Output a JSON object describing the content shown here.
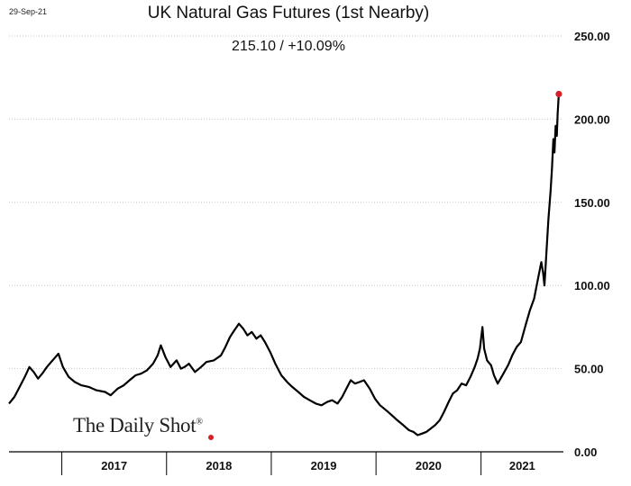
{
  "date_stamp": "29-Sep-21",
  "logo": {
    "text": "The Daily Shot",
    "mark": "®",
    "dot_color": "#d62027"
  },
  "chart_data": {
    "type": "line",
    "title": "UK Natural Gas Futures (1st Nearby)",
    "subtitle": "215.10  /  +10.09%",
    "xlabel": "",
    "ylabel": "",
    "ylim": [
      0,
      250
    ],
    "yticks": [
      0,
      50,
      100,
      150,
      200,
      250
    ],
    "ytick_labels": [
      "0.00",
      "50.00",
      "100.00",
      "150.00",
      "200.00",
      "250.00"
    ],
    "xlim": [
      "2016-07-01",
      "2021-10-15"
    ],
    "year_labels": [
      "2017",
      "2018",
      "2019",
      "2020",
      "2021"
    ],
    "grid": true,
    "line_color": "#000000",
    "last_point_color": "#d62027",
    "series": [
      {
        "points": [
          [
            "2016-07-01",
            29
          ],
          [
            "2016-07-20",
            33
          ],
          [
            "2016-08-10",
            40
          ],
          [
            "2016-08-25",
            45
          ],
          [
            "2016-09-10",
            51
          ],
          [
            "2016-09-25",
            48
          ],
          [
            "2016-10-10",
            44
          ],
          [
            "2016-10-25",
            47
          ],
          [
            "2016-11-10",
            51
          ],
          [
            "2016-11-25",
            54
          ],
          [
            "2016-12-10",
            57
          ],
          [
            "2016-12-20",
            59
          ],
          [
            "2017-01-05",
            51
          ],
          [
            "2017-01-25",
            45
          ],
          [
            "2017-02-15",
            42
          ],
          [
            "2017-03-10",
            40
          ],
          [
            "2017-04-05",
            39
          ],
          [
            "2017-05-01",
            37
          ],
          [
            "2017-06-01",
            36
          ],
          [
            "2017-06-20",
            34
          ],
          [
            "2017-07-15",
            38
          ],
          [
            "2017-08-05",
            40
          ],
          [
            "2017-08-25",
            43
          ],
          [
            "2017-09-15",
            46
          ],
          [
            "2017-10-05",
            47
          ],
          [
            "2017-10-25",
            49
          ],
          [
            "2017-11-15",
            53
          ],
          [
            "2017-12-01",
            58
          ],
          [
            "2017-12-12",
            64
          ],
          [
            "2017-12-28",
            57
          ],
          [
            "2018-01-15",
            51
          ],
          [
            "2018-02-05",
            55
          ],
          [
            "2018-02-20",
            50
          ],
          [
            "2018-03-05",
            51
          ],
          [
            "2018-03-20",
            53
          ],
          [
            "2018-04-10",
            48
          ],
          [
            "2018-05-01",
            51
          ],
          [
            "2018-05-20",
            54
          ],
          [
            "2018-06-15",
            55
          ],
          [
            "2018-07-10",
            58
          ],
          [
            "2018-07-25",
            63
          ],
          [
            "2018-08-10",
            69
          ],
          [
            "2018-08-25",
            73
          ],
          [
            "2018-09-10",
            77
          ],
          [
            "2018-09-25",
            74
          ],
          [
            "2018-10-10",
            70
          ],
          [
            "2018-10-25",
            72
          ],
          [
            "2018-11-10",
            68
          ],
          [
            "2018-11-25",
            70
          ],
          [
            "2018-12-10",
            66
          ],
          [
            "2018-12-28",
            60
          ],
          [
            "2019-01-15",
            53
          ],
          [
            "2019-02-05",
            46
          ],
          [
            "2019-02-25",
            42
          ],
          [
            "2019-03-15",
            39
          ],
          [
            "2019-04-05",
            36
          ],
          [
            "2019-04-25",
            33
          ],
          [
            "2019-05-15",
            31
          ],
          [
            "2019-06-05",
            29
          ],
          [
            "2019-06-25",
            28
          ],
          [
            "2019-07-15",
            30
          ],
          [
            "2019-08-01",
            31
          ],
          [
            "2019-08-20",
            29
          ],
          [
            "2019-09-05",
            33
          ],
          [
            "2019-09-20",
            38
          ],
          [
            "2019-10-05",
            43
          ],
          [
            "2019-10-20",
            41
          ],
          [
            "2019-11-05",
            42
          ],
          [
            "2019-11-20",
            43
          ],
          [
            "2019-12-10",
            38
          ],
          [
            "2019-12-28",
            32
          ],
          [
            "2020-01-15",
            28
          ],
          [
            "2020-02-05",
            25
          ],
          [
            "2020-02-25",
            22
          ],
          [
            "2020-03-15",
            19
          ],
          [
            "2020-04-05",
            16
          ],
          [
            "2020-04-25",
            13
          ],
          [
            "2020-05-10",
            12
          ],
          [
            "2020-05-25",
            10
          ],
          [
            "2020-06-10",
            11
          ],
          [
            "2020-06-25",
            12
          ],
          [
            "2020-07-10",
            14
          ],
          [
            "2020-07-25",
            16
          ],
          [
            "2020-08-10",
            19
          ],
          [
            "2020-08-25",
            24
          ],
          [
            "2020-09-10",
            30
          ],
          [
            "2020-09-25",
            35
          ],
          [
            "2020-10-10",
            37
          ],
          [
            "2020-10-25",
            41
          ],
          [
            "2020-11-10",
            40
          ],
          [
            "2020-11-25",
            45
          ],
          [
            "2020-12-10",
            51
          ],
          [
            "2020-12-20",
            56
          ],
          [
            "2020-12-28",
            62
          ],
          [
            "2021-01-06",
            75
          ],
          [
            "2021-01-12",
            62
          ],
          [
            "2021-01-22",
            55
          ],
          [
            "2021-02-05",
            52
          ],
          [
            "2021-02-15",
            46
          ],
          [
            "2021-02-28",
            41
          ],
          [
            "2021-03-10",
            44
          ],
          [
            "2021-03-20",
            47
          ],
          [
            "2021-04-05",
            52
          ],
          [
            "2021-04-20",
            58
          ],
          [
            "2021-05-05",
            63
          ],
          [
            "2021-05-20",
            66
          ],
          [
            "2021-06-05",
            76
          ],
          [
            "2021-06-20",
            85
          ],
          [
            "2021-07-05",
            92
          ],
          [
            "2021-07-15",
            101
          ],
          [
            "2021-07-22",
            107
          ],
          [
            "2021-07-30",
            114
          ],
          [
            "2021-08-05",
            108
          ],
          [
            "2021-08-10",
            100
          ],
          [
            "2021-08-17",
            120
          ],
          [
            "2021-08-24",
            140
          ],
          [
            "2021-08-31",
            156
          ],
          [
            "2021-09-05",
            170
          ],
          [
            "2021-09-10",
            188
          ],
          [
            "2021-09-14",
            180
          ],
          [
            "2021-09-18",
            196
          ],
          [
            "2021-09-22",
            190
          ],
          [
            "2021-09-25",
            203
          ],
          [
            "2021-09-29",
            215.1
          ]
        ]
      }
    ]
  }
}
